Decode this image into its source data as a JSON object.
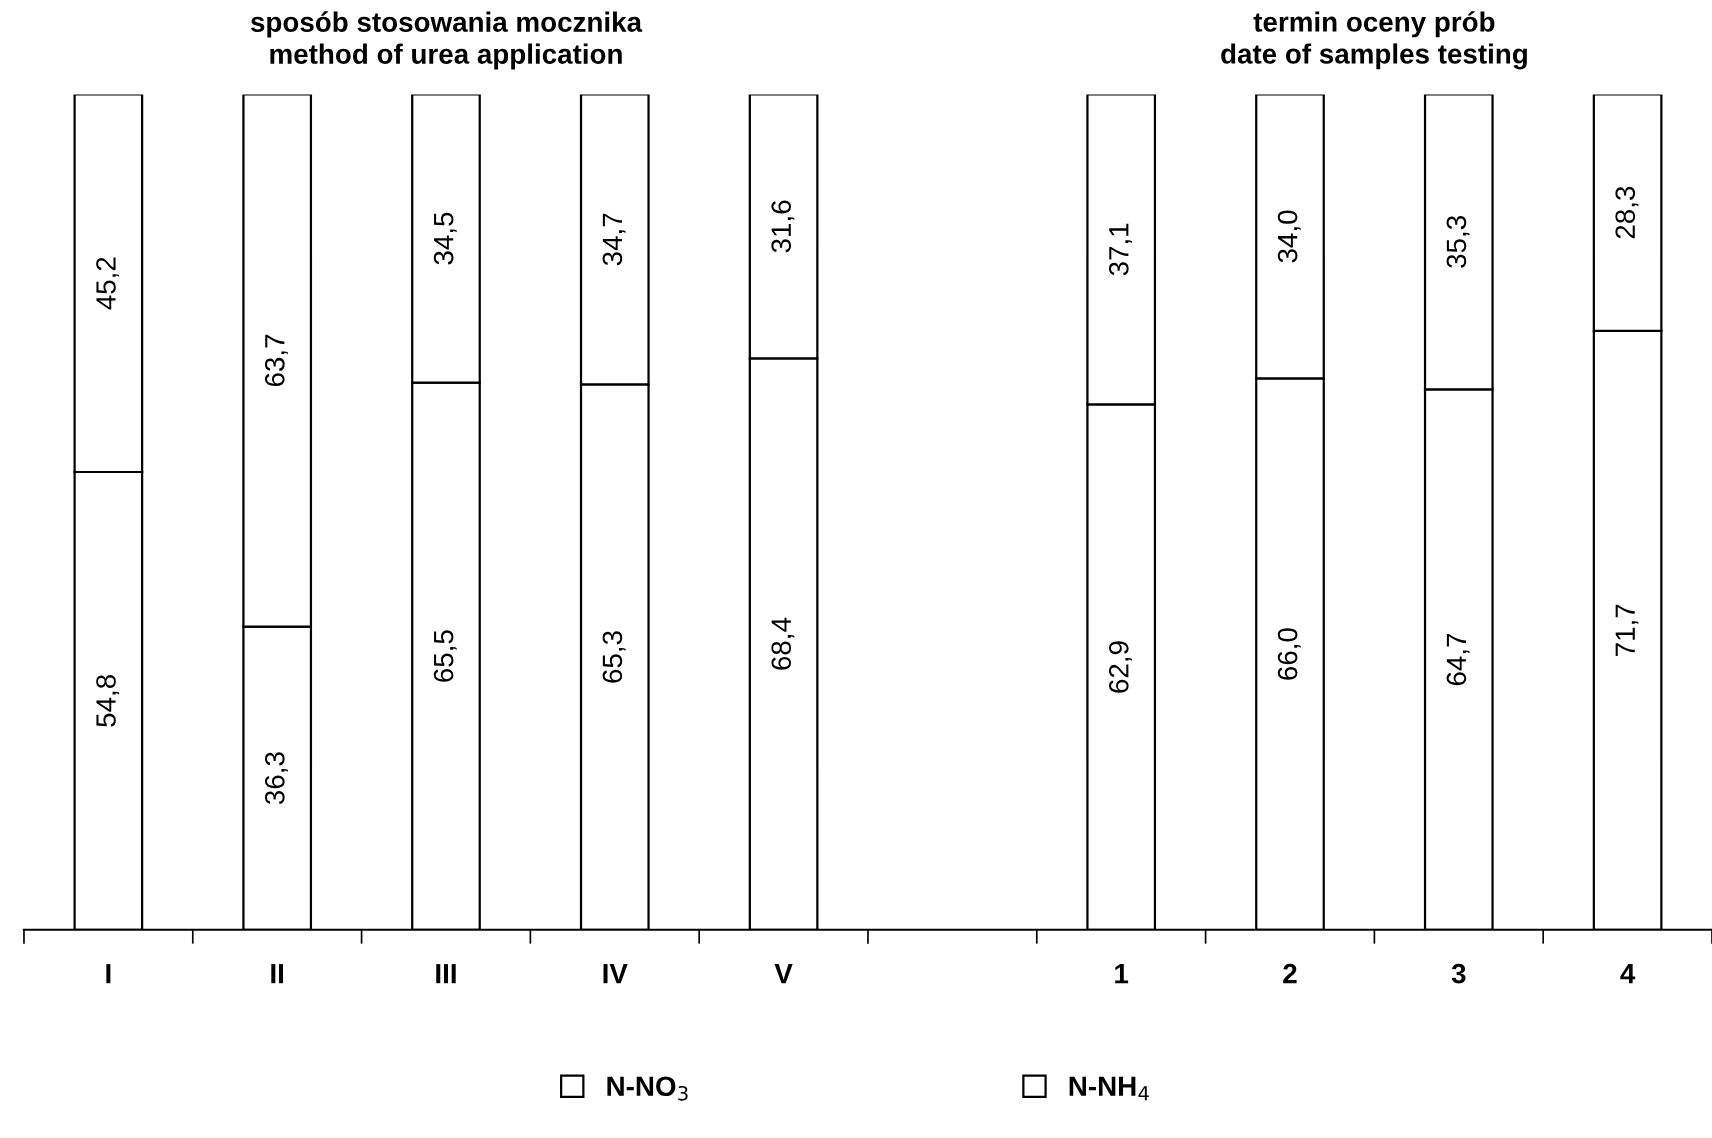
{
  "chart_data": {
    "type": "bar",
    "stacked": true,
    "categories": [
      "I",
      "II",
      "III",
      "IV",
      "V",
      null,
      "1",
      "2",
      "3",
      "4"
    ],
    "series": [
      {
        "name": "N-NO$_{3}$",
        "color": "#ffffff",
        "values": [
          54.8,
          36.3,
          65.5,
          65.3,
          68.4,
          null,
          62.9,
          66.0,
          64.7,
          71.7
        ],
        "value_labels": [
          "54,8",
          "36,3",
          "65,5",
          "65,3",
          "68,4",
          null,
          "62,9",
          "66,0",
          "64,7",
          "71,7"
        ]
      },
      {
        "name": "N-NH$_{4}$",
        "color": "#ffffff",
        "values": [
          45.2,
          63.7,
          34.5,
          34.7,
          31.6,
          null,
          37.1,
          34.0,
          35.3,
          28.3
        ],
        "value_labels": [
          "45,2",
          "63,7",
          "34,5",
          "34,7",
          "31,6",
          null,
          "37,1",
          "34,0",
          "35,3",
          "28,3"
        ]
      }
    ],
    "ylim": [
      0,
      100
    ],
    "annotations": [
      "sposób stosowania mocznika\nmethod of urea application",
      "termin oceny prób\ndate of samples testing"
    ],
    "legend": "bottom",
    "grid": false
  }
}
